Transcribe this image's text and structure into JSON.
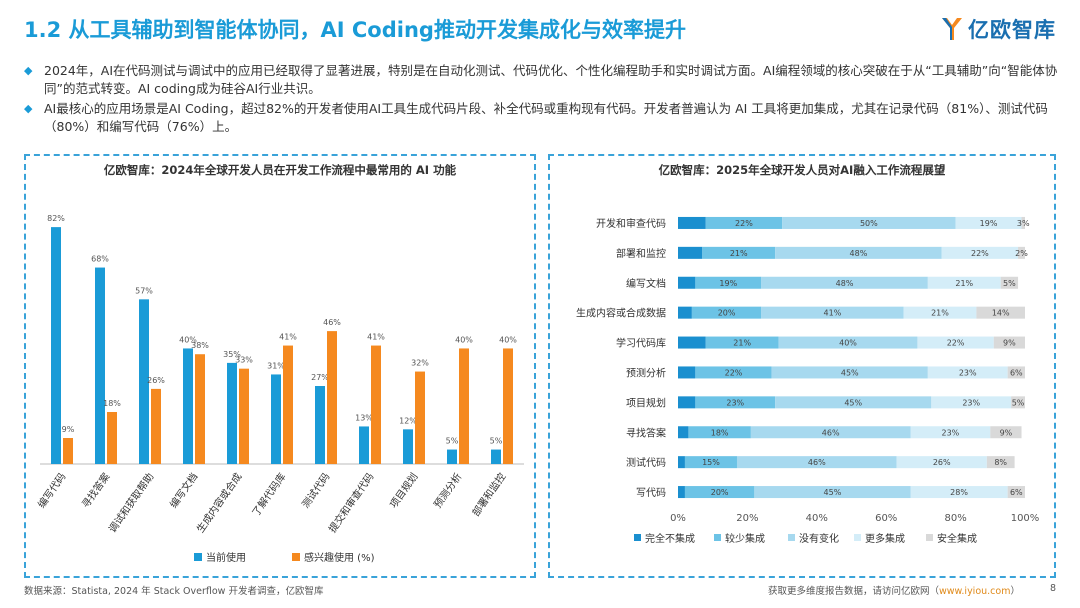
{
  "header": {
    "title": "1.2 从工具辅助到智能体协同，AI Coding推动开发集成化与效率提升",
    "logo_text": "亿欧智库"
  },
  "bullets": [
    "2024年，AI在代码测试与调试中的应用已经取得了显著进展，特别是在自动化测试、代码优化、个性化编程助手和实时调试方面。AI编程领域的核心突破在于从“工具辅助”向“智能体协同”的范式转变。AI coding成为硅谷AI行业共识。",
    "AI最核心的应用场景是AI Coding，超过82%的开发者使用AI工具生成代码片段、补全代码或重构现有代码。开发者普遍认为 AI 工具将更加集成，尤其在记录代码（81%）、测试代码（80%）和编写代码（76%）上。"
  ],
  "footer": {
    "source": "数据来源：Statista, 2024 年 Stack Overflow 开发者调查，亿欧智库",
    "more_prefix": "获取更多维度报告数据，请访问亿欧网（",
    "more_link": "www.iyiou.com",
    "more_suffix": "）",
    "page": "8"
  },
  "colors": {
    "accent": "#1a9bd7",
    "current": "#1a9bd7",
    "interest": "#f5891f",
    "s1": "#1a8fcf",
    "s2": "#6cc3e6",
    "s3": "#a7d9ef",
    "s4": "#d4edf8",
    "s5": "#d9d9d9"
  },
  "chart_data": [
    {
      "type": "bar",
      "title": "亿欧智库：2024年全球开发人员在开发工作流程中最常用的 AI 功能",
      "categories": [
        "编写代码",
        "寻找答案",
        "调试和获取帮助",
        "编写文档",
        "生成内容或合成",
        "了解代码库",
        "测试代码",
        "提交和审查代码",
        "项目规划",
        "预测分析",
        "部署和监控"
      ],
      "series": [
        {
          "name": "当前使用",
          "values": [
            82,
            68,
            57,
            40,
            35,
            31,
            27,
            13,
            12,
            5,
            5
          ]
        },
        {
          "name": "感兴趣使用 (%)",
          "values": [
            9,
            18,
            26,
            38,
            33,
            41,
            46,
            41,
            32,
            40,
            40
          ]
        }
      ],
      "value_suffix": "%",
      "ylim": [
        0,
        90
      ]
    },
    {
      "type": "bar",
      "orientation": "horizontal",
      "stacked": true,
      "title": "亿欧智库：2025年全球开发人员对AI融入工作流程展望",
      "categories": [
        "开发和审查代码",
        "部署和监控",
        "编写文档",
        "生成内容或合成数据",
        "学习代码库",
        "预测分析",
        "项目规划",
        "寻找答案",
        "测试代码",
        "写代码"
      ],
      "series": [
        {
          "name": "完全不集成",
          "values": [
            8,
            7,
            5,
            4,
            8,
            5,
            5,
            3,
            2,
            2
          ]
        },
        {
          "name": "较少集成",
          "values": [
            22,
            21,
            19,
            20,
            21,
            22,
            23,
            18,
            15,
            20
          ]
        },
        {
          "name": "没有变化",
          "values": [
            50,
            48,
            48,
            41,
            40,
            45,
            45,
            46,
            46,
            45
          ]
        },
        {
          "name": "更多集成",
          "values": [
            19,
            22,
            21,
            21,
            22,
            23,
            23,
            23,
            26,
            28
          ]
        },
        {
          "name": "安全集成",
          "values": [
            3,
            2,
            5,
            14,
            9,
            6,
            5,
            9,
            8,
            6
          ]
        }
      ],
      "label_series": [
        1,
        2,
        3,
        4
      ],
      "xticks": [
        "0%",
        "20%",
        "40%",
        "60%",
        "80%",
        "100%"
      ],
      "xlim": [
        0,
        100
      ],
      "value_suffix": "%"
    }
  ]
}
